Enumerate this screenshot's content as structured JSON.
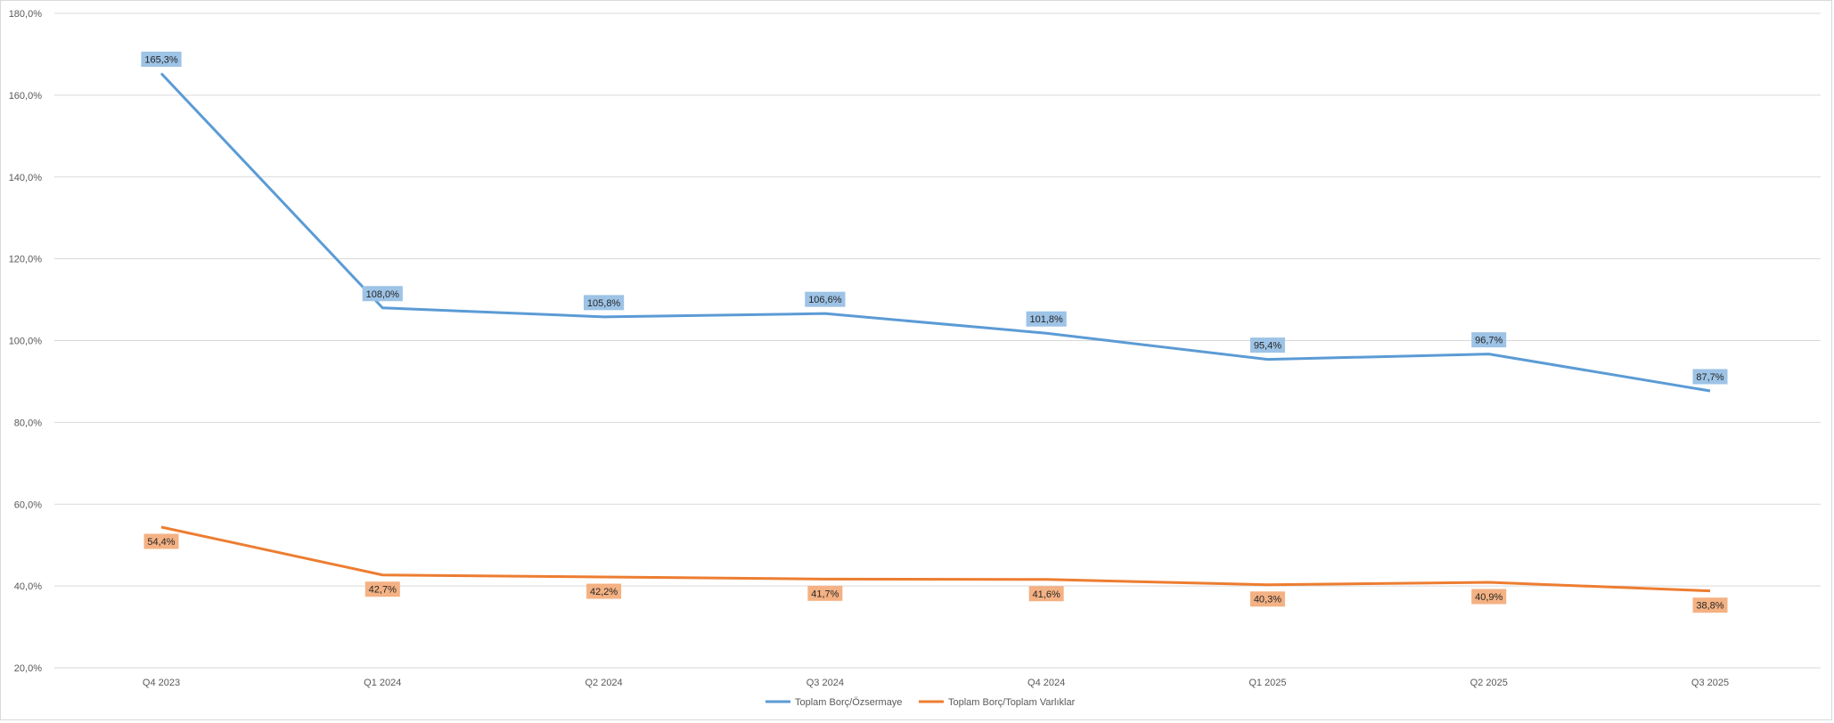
{
  "chart_data": {
    "type": "line",
    "categories": [
      "Q4 2023",
      "Q1 2024",
      "Q2 2024",
      "Q3 2024",
      "Q4 2024",
      "Q1 2025",
      "Q2 2025",
      "Q3 2025"
    ],
    "ylim": [
      20,
      180
    ],
    "yticks": [
      20,
      40,
      60,
      80,
      100,
      120,
      140,
      160,
      180
    ],
    "ytick_labels": [
      "20,0%",
      "40,0%",
      "60,0%",
      "80,0%",
      "100,0%",
      "120,0%",
      "140,0%",
      "160,0%",
      "180,0%"
    ],
    "grid": true,
    "legend_position": "bottom",
    "series": [
      {
        "name": "Toplam Borç/Özsermaye",
        "color": "#5b9bd5",
        "label_bg": "#9dc3e6",
        "label_position": "above",
        "values": [
          165.3,
          108.0,
          105.8,
          106.6,
          101.8,
          95.4,
          96.7,
          87.7
        ],
        "labels": [
          "165,3%",
          "108,0%",
          "105,8%",
          "106,6%",
          "101,8%",
          "95,4%",
          "96,7%",
          "87,7%"
        ]
      },
      {
        "name": "Toplam Borç/Toplam Varlıklar",
        "color": "#ed7d31",
        "label_bg": "#f4b183",
        "label_position": "below",
        "values": [
          54.4,
          42.7,
          42.2,
          41.7,
          41.6,
          40.3,
          40.9,
          38.8
        ],
        "labels": [
          "54,4%",
          "42,7%",
          "42,2%",
          "41,7%",
          "41,6%",
          "40,3%",
          "40,9%",
          "38,8%"
        ]
      }
    ]
  }
}
